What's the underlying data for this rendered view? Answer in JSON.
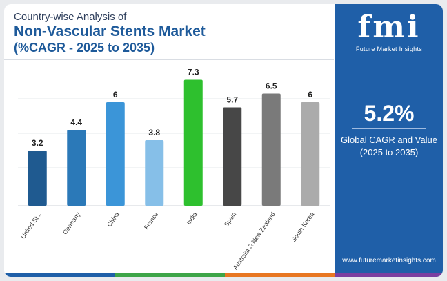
{
  "header": {
    "subtitle": "Country-wise Analysis of",
    "title": "Non-Vascular Stents Market",
    "title2": "(%CAGR - 2025 to 2035)"
  },
  "side": {
    "logo_text": "fmi",
    "logo_sub": "Future Market Insights",
    "cagr_value": "5.2%",
    "cagr_label_1": "Global CAGR and Value",
    "cagr_label_2": "(2025 to 2035)",
    "website": "www.futuremarketinsights.com"
  },
  "chart_data": {
    "type": "bar",
    "categories": [
      "United St...",
      "Germany",
      "China",
      "France",
      "India",
      "Spain",
      "Australia & New Zealand",
      "South Korea"
    ],
    "values": [
      3.2,
      4.4,
      6,
      3.8,
      7.3,
      5.7,
      6.5,
      6
    ],
    "value_labels": [
      "3.2",
      "4.4",
      "6",
      "3.8",
      "7.3",
      "5.7",
      "6.5",
      "6"
    ],
    "colors": [
      "#1f5a90",
      "#2b79b8",
      "#3b95d8",
      "#86bfe8",
      "#2ec02e",
      "#474747",
      "#7a7a7a",
      "#ababab"
    ],
    "ylim": [
      0,
      8
    ],
    "grid": true,
    "title": "",
    "xlabel": "",
    "ylabel": ""
  }
}
